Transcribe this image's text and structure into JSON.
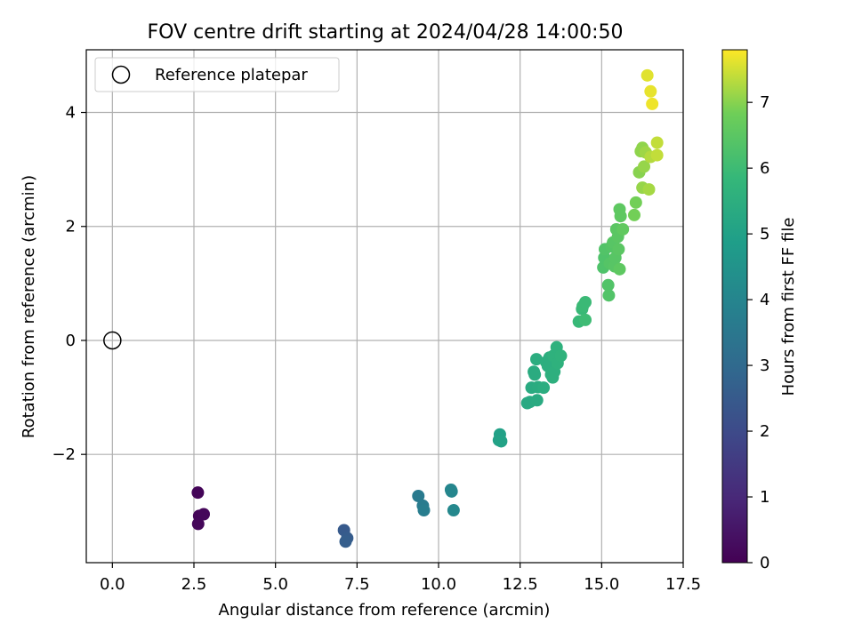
{
  "chart_data": {
    "type": "scatter",
    "title": "FOV centre drift starting at 2024/04/28 14:00:50",
    "xlabel": "Angular distance from reference (arcmin)",
    "ylabel": "Rotation from reference (arcmin)",
    "xlim": [
      -0.8,
      17.5
    ],
    "ylim": [
      -3.9,
      5.1
    ],
    "xticks": [
      0,
      2.5,
      5,
      7.5,
      10,
      12.5,
      15,
      17.5
    ],
    "xtick_labels": [
      "0.0",
      "2.5",
      "5.0",
      "7.5",
      "10.0",
      "12.5",
      "15.0",
      "17.5"
    ],
    "yticks": [
      -2,
      0,
      2,
      4
    ],
    "ytick_labels": [
      "−2",
      "0",
      "2",
      "4"
    ],
    "grid": true,
    "legend": {
      "location": "upper-left",
      "entries": [
        "Reference platepar"
      ]
    },
    "reference_point": {
      "x": 0,
      "y": 0,
      "marker": "open-circle"
    },
    "colorbar": {
      "label": "Hours from first FF file",
      "colormap": "viridis",
      "range": [
        0,
        7.8
      ],
      "ticks": [
        0,
        1,
        2,
        3,
        4,
        5,
        6,
        7
      ],
      "tick_labels": [
        "0",
        "1",
        "2",
        "3",
        "4",
        "5",
        "6",
        "7"
      ]
    },
    "series": [
      {
        "points": [
          {
            "x": 2.62,
            "y": -2.67,
            "c": 0.1
          },
          {
            "x": 2.66,
            "y": -3.08,
            "c": 0.1
          },
          {
            "x": 2.8,
            "y": -3.05,
            "c": 0.15
          },
          {
            "x": 2.63,
            "y": -3.22,
            "c": 0.15
          },
          {
            "x": 7.1,
            "y": -3.33,
            "c": 2.5
          },
          {
            "x": 7.2,
            "y": -3.47,
            "c": 2.55
          },
          {
            "x": 7.15,
            "y": -3.53,
            "c": 2.6
          },
          {
            "x": 9.38,
            "y": -2.73,
            "c": 3.6
          },
          {
            "x": 9.52,
            "y": -2.9,
            "c": 3.65
          },
          {
            "x": 9.55,
            "y": -2.98,
            "c": 3.7
          },
          {
            "x": 10.38,
            "y": -2.62,
            "c": 4.0
          },
          {
            "x": 10.4,
            "y": -2.65,
            "c": 4.05
          },
          {
            "x": 10.46,
            "y": -2.98,
            "c": 4.1
          },
          {
            "x": 11.88,
            "y": -1.65,
            "c": 5.0
          },
          {
            "x": 11.85,
            "y": -1.75,
            "c": 5.0
          },
          {
            "x": 11.92,
            "y": -1.77,
            "c": 5.05
          },
          {
            "x": 12.72,
            "y": -1.1,
            "c": 5.3
          },
          {
            "x": 12.8,
            "y": -1.08,
            "c": 5.3
          },
          {
            "x": 12.85,
            "y": -0.83,
            "c": 5.35
          },
          {
            "x": 13.02,
            "y": -1.05,
            "c": 5.35
          },
          {
            "x": 13.05,
            "y": -0.82,
            "c": 5.4
          },
          {
            "x": 12.92,
            "y": -0.55,
            "c": 5.4
          },
          {
            "x": 12.95,
            "y": -0.6,
            "c": 5.4
          },
          {
            "x": 13.0,
            "y": -0.33,
            "c": 5.45
          },
          {
            "x": 13.22,
            "y": -0.83,
            "c": 5.45
          },
          {
            "x": 13.3,
            "y": -0.38,
            "c": 5.5
          },
          {
            "x": 13.35,
            "y": -0.45,
            "c": 5.5
          },
          {
            "x": 13.4,
            "y": -0.3,
            "c": 5.5
          },
          {
            "x": 13.45,
            "y": -0.6,
            "c": 5.55
          },
          {
            "x": 13.5,
            "y": -0.65,
            "c": 5.55
          },
          {
            "x": 13.55,
            "y": -0.55,
            "c": 5.55
          },
          {
            "x": 13.52,
            "y": -0.27,
            "c": 5.6
          },
          {
            "x": 13.62,
            "y": -0.12,
            "c": 5.6
          },
          {
            "x": 13.65,
            "y": -0.4,
            "c": 5.6
          },
          {
            "x": 13.75,
            "y": -0.27,
            "c": 5.65
          },
          {
            "x": 14.3,
            "y": 0.33,
            "c": 5.9
          },
          {
            "x": 14.4,
            "y": 0.55,
            "c": 5.9
          },
          {
            "x": 14.42,
            "y": 0.6,
            "c": 5.95
          },
          {
            "x": 14.5,
            "y": 0.67,
            "c": 5.95
          },
          {
            "x": 14.5,
            "y": 0.36,
            "c": 6.0
          },
          {
            "x": 15.05,
            "y": 1.28,
            "c": 6.3
          },
          {
            "x": 15.08,
            "y": 1.45,
            "c": 6.3
          },
          {
            "x": 15.1,
            "y": 1.6,
            "c": 6.35
          },
          {
            "x": 15.2,
            "y": 0.97,
            "c": 6.35
          },
          {
            "x": 15.22,
            "y": 0.79,
            "c": 6.35
          },
          {
            "x": 15.25,
            "y": 1.35,
            "c": 6.4
          },
          {
            "x": 15.3,
            "y": 1.65,
            "c": 6.4
          },
          {
            "x": 15.35,
            "y": 1.72,
            "c": 6.45
          },
          {
            "x": 15.4,
            "y": 1.3,
            "c": 6.45
          },
          {
            "x": 15.42,
            "y": 1.45,
            "c": 6.45
          },
          {
            "x": 15.45,
            "y": 1.95,
            "c": 6.5
          },
          {
            "x": 15.5,
            "y": 1.82,
            "c": 6.5
          },
          {
            "x": 15.52,
            "y": 1.6,
            "c": 6.5
          },
          {
            "x": 15.55,
            "y": 1.25,
            "c": 6.55
          },
          {
            "x": 15.55,
            "y": 2.3,
            "c": 6.55
          },
          {
            "x": 15.58,
            "y": 2.18,
            "c": 6.55
          },
          {
            "x": 15.65,
            "y": 1.95,
            "c": 6.6
          },
          {
            "x": 16.0,
            "y": 2.2,
            "c": 6.85
          },
          {
            "x": 16.05,
            "y": 2.42,
            "c": 6.85
          },
          {
            "x": 16.15,
            "y": 2.95,
            "c": 7.0
          },
          {
            "x": 16.2,
            "y": 3.32,
            "c": 7.05
          },
          {
            "x": 16.25,
            "y": 3.38,
            "c": 7.05
          },
          {
            "x": 16.25,
            "y": 2.68,
            "c": 7.1
          },
          {
            "x": 16.3,
            "y": 3.05,
            "c": 7.1
          },
          {
            "x": 16.35,
            "y": 3.3,
            "c": 7.15
          },
          {
            "x": 16.45,
            "y": 2.65,
            "c": 7.2
          },
          {
            "x": 16.5,
            "y": 3.22,
            "c": 7.3
          },
          {
            "x": 16.7,
            "y": 3.47,
            "c": 7.4
          },
          {
            "x": 16.7,
            "y": 3.25,
            "c": 7.4
          },
          {
            "x": 16.4,
            "y": 4.65,
            "c": 7.6
          },
          {
            "x": 16.5,
            "y": 4.37,
            "c": 7.65
          },
          {
            "x": 16.55,
            "y": 4.15,
            "c": 7.7
          }
        ]
      }
    ]
  }
}
